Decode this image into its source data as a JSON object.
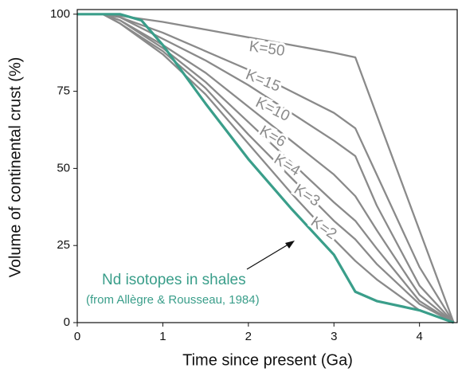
{
  "chart_data": {
    "type": "line",
    "xlabel": "Time since present (Ga)",
    "ylabel": "Volume of continental crust (%)",
    "xlim": [
      0,
      4.45
    ],
    "ylim": [
      0,
      101.5
    ],
    "xticks": [
      0,
      1,
      2,
      3,
      4
    ],
    "yticks": [
      0,
      25,
      50,
      75,
      100
    ],
    "series": [
      {
        "name": "K=50",
        "color": "#8a8a8a",
        "x": [
          0,
          0.3,
          0.5,
          1,
          1.5,
          2,
          2.5,
          3,
          3.25,
          4.4
        ],
        "values": [
          100,
          100,
          99.5,
          97.5,
          95,
          92.5,
          90,
          87.5,
          86,
          0
        ]
      },
      {
        "name": "K=15",
        "color": "#8a8a8a",
        "x": [
          0,
          0.3,
          0.5,
          1,
          1.5,
          2,
          2.5,
          3,
          3.25,
          3.5,
          4,
          4.4
        ],
        "values": [
          100,
          100,
          99,
          94,
          88,
          82,
          75,
          68,
          63,
          48,
          18,
          0
        ]
      },
      {
        "name": "K=10",
        "color": "#8a8a8a",
        "x": [
          0,
          0.3,
          0.5,
          1,
          1.5,
          2,
          2.5,
          3,
          3.25,
          3.5,
          4,
          4.4
        ],
        "values": [
          100,
          100,
          99,
          92,
          85,
          77,
          68,
          59,
          54,
          38,
          12,
          0
        ]
      },
      {
        "name": "K=6",
        "color": "#8a8a8a",
        "x": [
          0,
          0.3,
          0.5,
          1,
          1.5,
          2,
          2.5,
          3,
          3.25,
          3.5,
          4,
          4.4
        ],
        "values": [
          100,
          100,
          98,
          90,
          81,
          70,
          59,
          48,
          41,
          30,
          9,
          0
        ]
      },
      {
        "name": "K=4",
        "color": "#8a8a8a",
        "x": [
          0,
          0.3,
          0.5,
          1,
          1.5,
          2,
          2.5,
          3,
          3.25,
          3.5,
          4,
          4.4
        ],
        "values": [
          100,
          100,
          98,
          89,
          78,
          65,
          52,
          39,
          33,
          24,
          7,
          0
        ]
      },
      {
        "name": "K=3",
        "color": "#8a8a8a",
        "x": [
          0,
          0.3,
          0.5,
          1,
          1.5,
          2,
          2.5,
          3,
          3.25,
          3.5,
          4,
          4.4
        ],
        "values": [
          100,
          100,
          97,
          88,
          76,
          61,
          47,
          33,
          27,
          19,
          6,
          0
        ]
      },
      {
        "name": "K=2",
        "color": "#8a8a8a",
        "x": [
          0,
          0.3,
          0.5,
          1,
          1.5,
          2,
          2.5,
          3,
          3.25,
          3.5,
          4,
          4.4
        ],
        "values": [
          100,
          100,
          97,
          87,
          74,
          58,
          42,
          27,
          20,
          14,
          4,
          0
        ]
      },
      {
        "name": "Nd isotopes in shales",
        "color": "#3a9e8a",
        "x": [
          0,
          0.25,
          0.5,
          0.75,
          1,
          1.5,
          2,
          2.5,
          3,
          3.25,
          3.5,
          4,
          4.4
        ],
        "values": [
          100,
          100,
          100,
          98,
          90,
          71,
          53,
          37,
          22,
          10,
          7,
          4,
          0
        ]
      }
    ],
    "annotations": [
      "(from Allègre & Rousseau, 1984)"
    ]
  }
}
